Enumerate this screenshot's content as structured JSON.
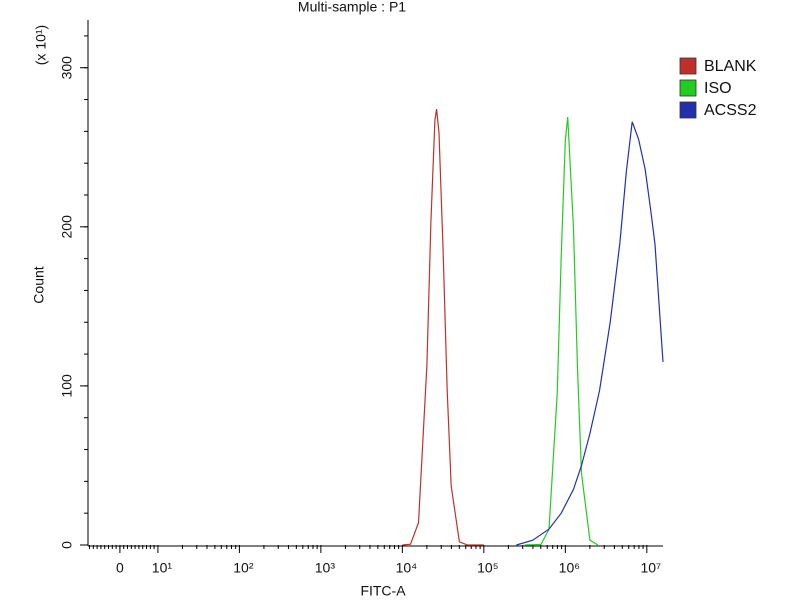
{
  "chart_data": {
    "type": "line",
    "title": "Multi-sample : P1",
    "x_label": "FITC-A",
    "y_label": "Count",
    "y_multiplier": "(x 10¹)",
    "xscale": "biexponential",
    "xlim": [
      -8.4,
      15800000
    ],
    "xticks": [
      0,
      {
        "value": 10,
        "label": "10¹"
      },
      {
        "value": 100,
        "label": "10²"
      },
      {
        "value": 1000,
        "label": "10³"
      },
      {
        "value": 10000,
        "label": "10⁴"
      },
      {
        "value": 100000,
        "label": "10⁵"
      },
      {
        "value": 1000000,
        "label": "10⁶"
      },
      {
        "value": 10000000,
        "label": "10⁷"
      }
    ],
    "ylim": [
      0,
      330
    ],
    "yticks": [
      0,
      100,
      200,
      300
    ],
    "legend": "right",
    "series": [
      {
        "name": "BLANK",
        "color": "#c0302a",
        "x": [
          10000,
          12600,
          15800,
          20000,
          22400,
          25100,
          26300,
          28200,
          31600,
          35500,
          39800,
          50100,
          63100,
          100000
        ],
        "values": [
          0,
          0.5,
          14,
          113,
          203,
          267,
          274,
          259,
          185,
          97,
          37,
          2,
          0,
          0
        ]
      },
      {
        "name": "ISO",
        "color": "#22cc22",
        "x": [
          316000,
          501000,
          631000,
          794000,
          891000,
          1000000,
          1070000,
          1260000,
          1410000,
          1580000,
          2000000,
          2510000
        ],
        "values": [
          0,
          0.3,
          10,
          95,
          181,
          254,
          269,
          199,
          111,
          45,
          3,
          0
        ]
      },
      {
        "name": "ACSS2",
        "color": "#2230b0",
        "x": [
          251000,
          398000,
          631000,
          891000,
          1260000,
          1580000,
          2000000,
          2630000,
          3550000,
          4680000,
          5620000,
          6610000,
          7940000,
          9550000,
          11200000,
          12600000,
          15800000
        ],
        "values": [
          0,
          3,
          10,
          20,
          35,
          50,
          70,
          97,
          140,
          190,
          235,
          266,
          255,
          236,
          210,
          189,
          115
        ]
      }
    ]
  }
}
